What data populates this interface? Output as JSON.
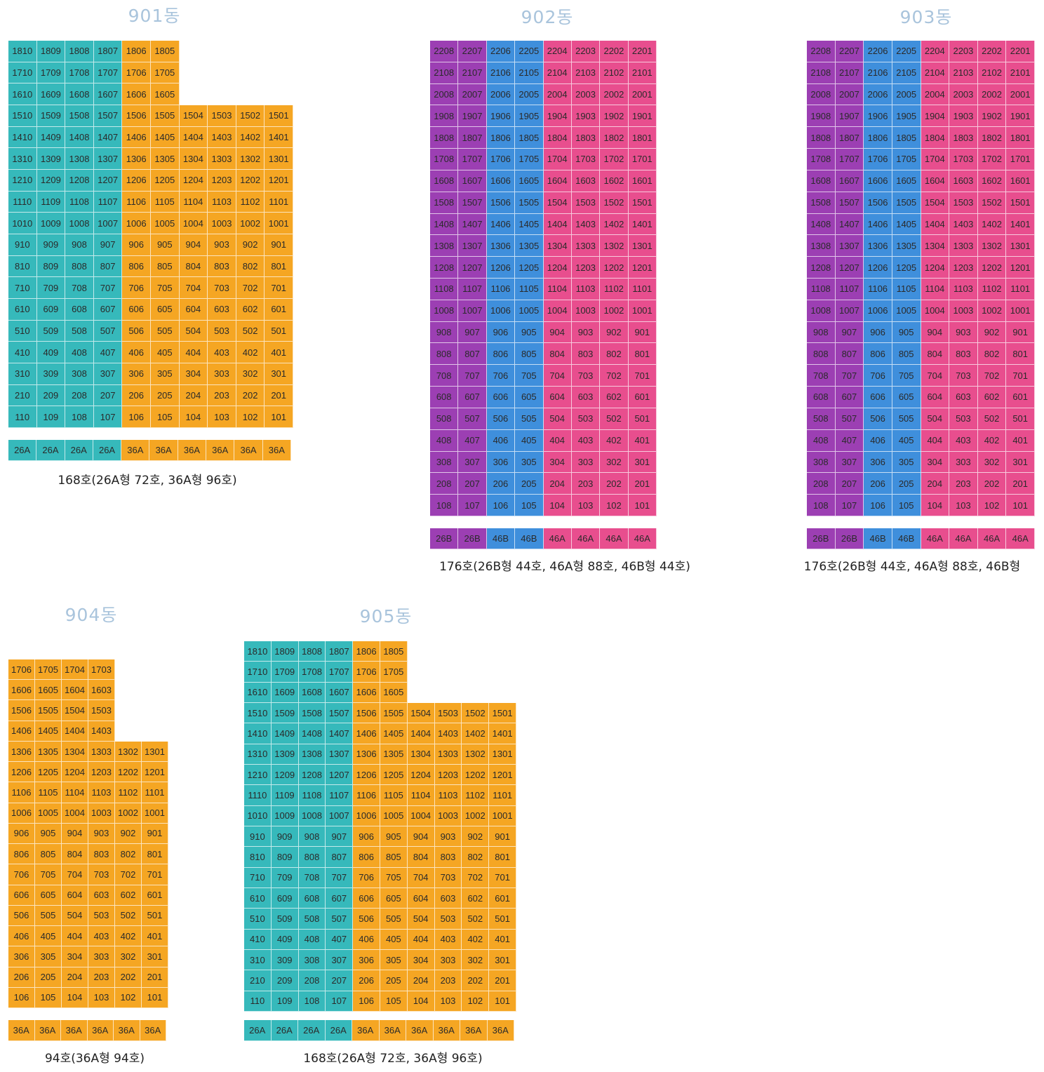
{
  "colors": {
    "teal": "#36b9bb",
    "orange": "#f5a623",
    "purple": "#9c3fb3",
    "blue": "#3f8fdc",
    "pink": "#e84e8e"
  },
  "buildings": [
    {
      "id": "901",
      "title": "901동",
      "floors": 18,
      "units_per_floor": 10,
      "top_floor_units_by_floor": {
        "18": 6,
        "17": 6,
        "16": 6
      },
      "column_colors": [
        "teal",
        "teal",
        "teal",
        "teal",
        "orange",
        "orange",
        "orange",
        "orange",
        "orange",
        "orange"
      ],
      "unit_numbers": [
        "10",
        "09",
        "08",
        "07",
        "06",
        "05",
        "04",
        "03",
        "02",
        "01"
      ],
      "type_row": [
        "26A",
        "26A",
        "26A",
        "26A",
        "36A",
        "36A",
        "36A",
        "36A",
        "36A",
        "36A"
      ],
      "caption": "168호(26A형 72호, 36A형 96호)"
    },
    {
      "id": "902",
      "title": "902동",
      "floors": 22,
      "units_per_floor": 8,
      "top_floor_units_by_floor": {},
      "column_colors": [
        "purple",
        "purple",
        "blue",
        "blue",
        "pink",
        "pink",
        "pink",
        "pink"
      ],
      "unit_numbers": [
        "08",
        "07",
        "06",
        "05",
        "04",
        "03",
        "02",
        "01"
      ],
      "type_row": [
        "26B",
        "26B",
        "46B",
        "46B",
        "46A",
        "46A",
        "46A",
        "46A"
      ],
      "caption": "176호(26B형 44호, 46A형 88호, 46B형 44호)"
    },
    {
      "id": "903",
      "title": "903동",
      "floors": 22,
      "units_per_floor": 8,
      "top_floor_units_by_floor": {},
      "column_colors": [
        "purple",
        "purple",
        "blue",
        "blue",
        "pink",
        "pink",
        "pink",
        "pink"
      ],
      "unit_numbers": [
        "08",
        "07",
        "06",
        "05",
        "04",
        "03",
        "02",
        "01"
      ],
      "type_row": [
        "26B",
        "26B",
        "46B",
        "46B",
        "46A",
        "46A",
        "46A",
        "46A"
      ],
      "caption": "176호(26B형 44호, 46A형 88호, 46B형"
    },
    {
      "id": "904",
      "title": "904동",
      "floors": 17,
      "units_per_floor": 6,
      "top_floor_units_by_floor": {
        "17": 4,
        "16": 4,
        "15": 4,
        "14": 4
      },
      "column_colors": [
        "orange",
        "orange",
        "orange",
        "orange",
        "orange",
        "orange"
      ],
      "unit_numbers": [
        "06",
        "05",
        "04",
        "03",
        "02",
        "01"
      ],
      "type_row": [
        "36A",
        "36A",
        "36A",
        "36A",
        "36A",
        "36A"
      ],
      "caption": "94호(36A형 94호)"
    },
    {
      "id": "905",
      "title": "905동",
      "floors": 18,
      "units_per_floor": 10,
      "top_floor_units_by_floor": {
        "18": 6,
        "17": 6,
        "16": 6
      },
      "column_colors": [
        "teal",
        "teal",
        "teal",
        "teal",
        "orange",
        "orange",
        "orange",
        "orange",
        "orange",
        "orange"
      ],
      "unit_numbers": [
        "10",
        "09",
        "08",
        "07",
        "06",
        "05",
        "04",
        "03",
        "02",
        "01"
      ],
      "type_row": [
        "26A",
        "26A",
        "26A",
        "26A",
        "36A",
        "36A",
        "36A",
        "36A",
        "36A",
        "36A"
      ],
      "caption": "168호(26A형 72호, 36A형 96호)"
    }
  ]
}
